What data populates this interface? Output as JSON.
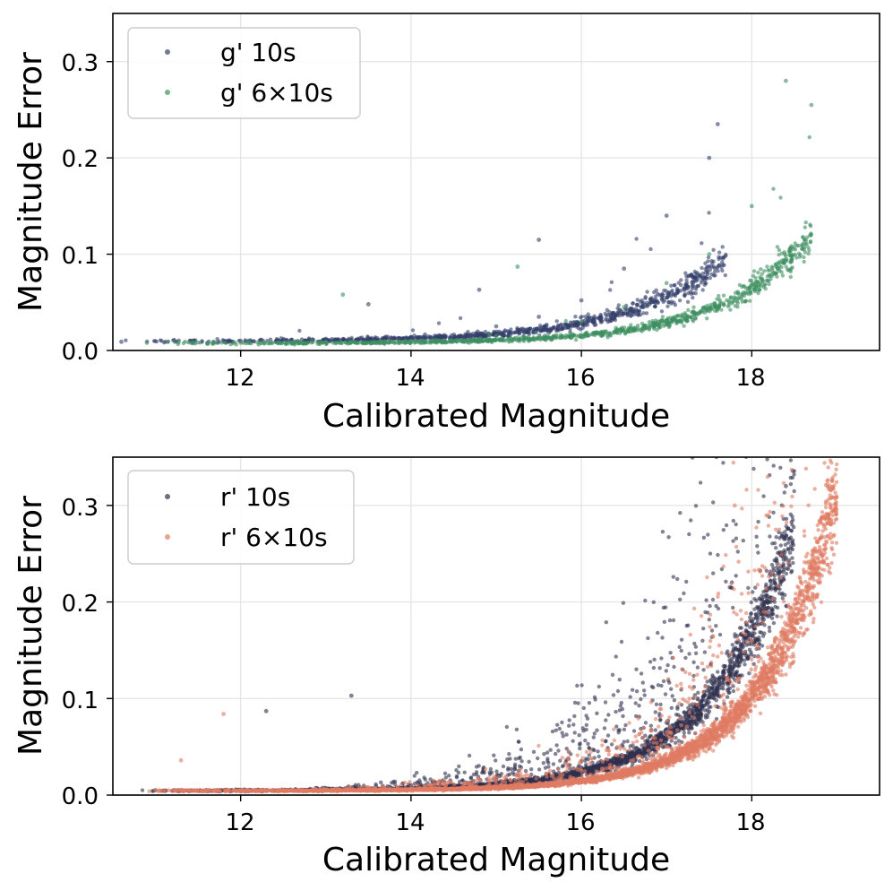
{
  "chart_data": [
    {
      "type": "scatter",
      "xlabel": "Calibrated Magnitude",
      "ylabel": "Magnitude Error",
      "xlim": [
        10.5,
        19.5
      ],
      "ylim": [
        0.0,
        0.35
      ],
      "xticks": [
        12,
        14,
        16,
        18
      ],
      "xtick_labels": [
        "12",
        "14",
        "16",
        "18"
      ],
      "yticks": [
        0.0,
        0.1,
        0.2,
        0.3
      ],
      "ytick_labels": [
        "0.0",
        "0.1",
        "0.2",
        "0.3"
      ],
      "grid": true,
      "legend_position": "top-left",
      "series": [
        {
          "name": "g' 10s",
          "color": "#34406b",
          "model": {
            "floor": 0.0095,
            "amplitude": 0.00052,
            "ref_mag": 12.0,
            "slope": 0.9,
            "mag_range": [
              10.6,
              17.7
            ],
            "count": 900
          },
          "points": [
            [
              10.6,
              0.009
            ],
            [
              12.0,
              0.01
            ],
            [
              13.0,
              0.011
            ],
            [
              14.0,
              0.014
            ],
            [
              15.0,
              0.025
            ],
            [
              15.5,
              0.035
            ],
            [
              16.0,
              0.052
            ],
            [
              16.5,
              0.085
            ],
            [
              17.0,
              0.14
            ],
            [
              17.5,
              0.2
            ],
            [
              17.6,
              0.235
            ],
            [
              15.5,
              0.115
            ],
            [
              13.5,
              0.048
            ],
            [
              14.8,
              0.063
            ]
          ]
        },
        {
          "name": "g' 6×10s",
          "color": "#3e9060",
          "model": {
            "floor": 0.0075,
            "amplitude": 0.00017,
            "ref_mag": 12.0,
            "slope": 0.97,
            "mag_range": [
              10.9,
              18.7
            ],
            "count": 1000
          },
          "points": [
            [
              10.9,
              0.008
            ],
            [
              12.0,
              0.008
            ],
            [
              13.0,
              0.009
            ],
            [
              14.0,
              0.01
            ],
            [
              15.0,
              0.015
            ],
            [
              16.0,
              0.03
            ],
            [
              16.5,
              0.045
            ],
            [
              17.0,
              0.07
            ],
            [
              17.5,
              0.1
            ],
            [
              18.0,
              0.15
            ],
            [
              18.4,
              0.28
            ],
            [
              18.7,
              0.255
            ],
            [
              13.2,
              0.058
            ],
            [
              15.25,
              0.087
            ]
          ]
        }
      ]
    },
    {
      "type": "scatter",
      "xlabel": "Calibrated Magnitude",
      "ylabel": "Magnitude Error",
      "xlim": [
        10.5,
        19.5
      ],
      "ylim": [
        0.0,
        0.35
      ],
      "xticks": [
        12,
        14,
        16,
        18
      ],
      "xtick_labels": [
        "12",
        "14",
        "16",
        "18"
      ],
      "yticks": [
        0.0,
        0.1,
        0.2,
        0.3
      ],
      "ytick_labels": [
        "0.0",
        "0.1",
        "0.2",
        "0.3"
      ],
      "grid": true,
      "legend_position": "top-left",
      "series": [
        {
          "name": "r' 10s",
          "color": "#30304f",
          "model": {
            "floor": 0.0045,
            "amplitude": 0.00028,
            "ref_mag": 12.0,
            "slope": 1.06,
            "mag_range": [
              10.8,
              18.5
            ],
            "count": 3000
          },
          "points": [
            [
              11.0,
              0.005
            ],
            [
              12.0,
              0.005
            ],
            [
              13.0,
              0.007
            ],
            [
              14.0,
              0.01
            ],
            [
              15.0,
              0.018
            ],
            [
              16.0,
              0.035
            ],
            [
              17.0,
              0.075
            ],
            [
              17.5,
              0.11
            ],
            [
              18.0,
              0.18
            ],
            [
              18.3,
              0.24
            ],
            [
              18.4,
              0.32
            ],
            [
              12.3,
              0.087
            ],
            [
              13.3,
              0.103
            ]
          ]
        },
        {
          "name": "r' 6×10s",
          "color": "#e07b62",
          "model": {
            "floor": 0.0045,
            "amplitude": 0.000105,
            "ref_mag": 12.0,
            "slope": 1.14,
            "mag_range": [
              10.9,
              19.0
            ],
            "count": 4200
          },
          "points": [
            [
              11.0,
              0.005
            ],
            [
              12.0,
              0.005
            ],
            [
              13.0,
              0.006
            ],
            [
              14.0,
              0.008
            ],
            [
              15.0,
              0.012
            ],
            [
              16.0,
              0.025
            ],
            [
              17.0,
              0.05
            ],
            [
              18.0,
              0.11
            ],
            [
              18.5,
              0.18
            ],
            [
              18.8,
              0.25
            ],
            [
              18.9,
              0.29
            ],
            [
              11.3,
              0.036
            ],
            [
              11.8,
              0.084
            ],
            [
              17.8,
              0.3
            ]
          ]
        }
      ]
    }
  ]
}
